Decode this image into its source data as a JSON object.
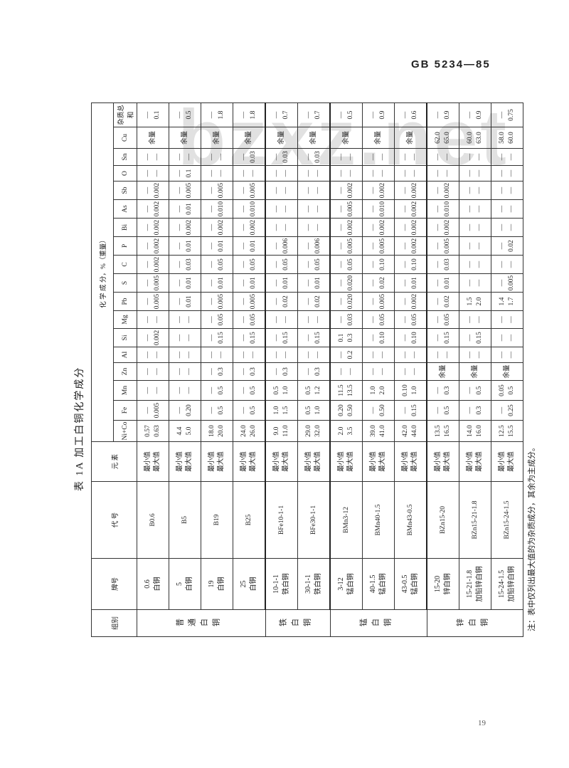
{
  "header": {
    "standard": "GB 5234—85"
  },
  "page_number": "19",
  "watermark": "bzxz.net",
  "table": {
    "title": "表 1A  加工白铜化学成分",
    "headers": {
      "group": "组别",
      "brand": "牌号",
      "code": "代 号",
      "element": "元 素",
      "composition": "化 学 成 分，%（重量）"
    },
    "elements": [
      "Ni+Co",
      "Fe",
      "Mn",
      "Zn",
      "Al",
      "Si",
      "Mg",
      "Pb",
      "S",
      "C",
      "P",
      "Bi",
      "As",
      "Sb",
      "O",
      "Sn",
      "Cu",
      "杂质总和"
    ],
    "minmax": [
      "最小值",
      "最大值"
    ],
    "groups": [
      {
        "name": "普通白铜",
        "rows": 4
      },
      {
        "name": "铁白铜",
        "rows": 2
      },
      {
        "name": "锰白铜",
        "rows": 3
      },
      {
        "name": "锌白铜",
        "rows": 3
      }
    ],
    "rows": [
      {
        "brand": [
          "0.6",
          "白铜"
        ],
        "code": "B0.6",
        "values": [
          [
            "0.57",
            "0.63"
          ],
          [
            "—",
            "0.005"
          ],
          [
            "—",
            "—"
          ],
          [
            "—",
            "—"
          ],
          [
            "—",
            "—"
          ],
          [
            "—",
            "0.002"
          ],
          [
            "—",
            "—"
          ],
          [
            "—",
            "0.005"
          ],
          [
            "—",
            "0.005"
          ],
          [
            "—",
            "0.002"
          ],
          [
            "—",
            "0.002"
          ],
          [
            "—",
            "0.002"
          ],
          [
            "—",
            "0.002"
          ],
          [
            "—",
            "0.002"
          ],
          [
            "—",
            "—"
          ],
          [
            "—",
            "—"
          ],
          [
            "余量"
          ],
          [
            "—",
            "0.1"
          ]
        ]
      },
      {
        "brand": [
          "5",
          "白铜"
        ],
        "code": "B5",
        "values": [
          [
            "4.4",
            "5.0"
          ],
          [
            "—",
            "0.20"
          ],
          [
            "—",
            "—"
          ],
          [
            "—",
            "—"
          ],
          [
            "—",
            "—"
          ],
          [
            "—",
            "—"
          ],
          [
            "—",
            "—"
          ],
          [
            "—",
            "0.01"
          ],
          [
            "—",
            "0.01"
          ],
          [
            "—",
            "0.03"
          ],
          [
            "—",
            "0.01"
          ],
          [
            "—",
            "0.002"
          ],
          [
            "—",
            "0.01"
          ],
          [
            "—",
            "0.005"
          ],
          [
            "—",
            "0.1"
          ],
          [
            "—",
            "—"
          ],
          [
            "余量"
          ],
          [
            "—",
            "0.5"
          ]
        ]
      },
      {
        "brand": [
          "19",
          "白铜"
        ],
        "code": "B19",
        "values": [
          [
            "18.0",
            "20.0"
          ],
          [
            "—",
            "0.5"
          ],
          [
            "—",
            "0.5"
          ],
          [
            "—",
            "0.3"
          ],
          [
            "—",
            "—"
          ],
          [
            "—",
            "0.15"
          ],
          [
            "—",
            "0.05"
          ],
          [
            "—",
            "0.005"
          ],
          [
            "—",
            "0.01"
          ],
          [
            "—",
            "0.05"
          ],
          [
            "—",
            "0.01"
          ],
          [
            "—",
            "0.002"
          ],
          [
            "—",
            "0.010"
          ],
          [
            "—",
            "0.005"
          ],
          [
            "—",
            "—"
          ],
          [
            "—",
            "—"
          ],
          [
            "余量"
          ],
          [
            "—",
            "1.8"
          ]
        ]
      },
      {
        "brand": [
          "25",
          "白铜"
        ],
        "code": "B25",
        "values": [
          [
            "24.0",
            "26.0"
          ],
          [
            "—",
            "0.5"
          ],
          [
            "—",
            "0.5"
          ],
          [
            "—",
            "0.3"
          ],
          [
            "—",
            "—"
          ],
          [
            "—",
            "0.15"
          ],
          [
            "—",
            "0.05"
          ],
          [
            "—",
            "0.005"
          ],
          [
            "—",
            "0.01"
          ],
          [
            "—",
            "0.05"
          ],
          [
            "—",
            "0.01"
          ],
          [
            "—",
            "0.002"
          ],
          [
            "—",
            "0.010"
          ],
          [
            "—",
            "0.005"
          ],
          [
            "—",
            "—"
          ],
          [
            "—",
            "0.03"
          ],
          [
            "余量"
          ],
          [
            "—",
            "1.8"
          ]
        ]
      },
      {
        "brand": [
          "10-1-1",
          "铁白铜"
        ],
        "code": "BFe10-1-1",
        "values": [
          [
            "9.0",
            "11.0"
          ],
          [
            "1.0",
            "1.5"
          ],
          [
            "0.5",
            "1.0"
          ],
          [
            "—",
            "0.3"
          ],
          [
            "—",
            "—"
          ],
          [
            "—",
            "0.15"
          ],
          [
            "—",
            "—"
          ],
          [
            "—",
            "0.02"
          ],
          [
            "—",
            "0.01"
          ],
          [
            "—",
            "0.05"
          ],
          [
            "—",
            "0.006"
          ],
          [
            "—",
            "—"
          ],
          [
            "—",
            "—"
          ],
          [
            "—",
            "—"
          ],
          [
            "—",
            "—"
          ],
          [
            "—",
            "0.03"
          ],
          [
            "余量"
          ],
          [
            "—",
            "0.7"
          ]
        ]
      },
      {
        "brand": [
          "30-1-1",
          "铁白铜"
        ],
        "code": "BFe30-1-1",
        "values": [
          [
            "29.0",
            "32.0"
          ],
          [
            "0.5",
            "1.0"
          ],
          [
            "0.5",
            "1.2"
          ],
          [
            "—",
            "0.3"
          ],
          [
            "—",
            "—"
          ],
          [
            "—",
            "0.15"
          ],
          [
            "—",
            "—"
          ],
          [
            "—",
            "0.02"
          ],
          [
            "—",
            "0.01"
          ],
          [
            "—",
            "0.05"
          ],
          [
            "—",
            "0.006"
          ],
          [
            "—",
            "—"
          ],
          [
            "—",
            "—"
          ],
          [
            "—",
            "—"
          ],
          [
            "—",
            "—"
          ],
          [
            "—",
            "0.03"
          ],
          [
            "余量"
          ],
          [
            "—",
            "0.7"
          ]
        ]
      },
      {
        "brand": [
          "3-12",
          "锰白铜"
        ],
        "code": "BMn3-12",
        "values": [
          [
            "2.0",
            "3.5"
          ],
          [
            "0.20",
            "0.50"
          ],
          [
            "11.5",
            "13.5"
          ],
          [
            "—",
            "—"
          ],
          [
            "—",
            "0.2"
          ],
          [
            "0.1",
            "0.3"
          ],
          [
            "—",
            "0.03"
          ],
          [
            "—",
            "0.020"
          ],
          [
            "—",
            "0.020"
          ],
          [
            "—",
            "0.05"
          ],
          [
            "—",
            "0.005"
          ],
          [
            "—",
            "0.002"
          ],
          [
            "—",
            "0.005"
          ],
          [
            "—",
            "0.002"
          ],
          [
            "—",
            "—"
          ],
          [
            "—",
            "—"
          ],
          [
            "余量"
          ],
          [
            "—",
            "0.5"
          ]
        ]
      },
      {
        "brand": [
          "40-1.5",
          "锰白铜"
        ],
        "code": "BMn40-1.5",
        "values": [
          [
            "39.0",
            "41.0"
          ],
          [
            "—",
            "0.50"
          ],
          [
            "1.0",
            "2.0"
          ],
          [
            "—",
            "—"
          ],
          [
            "—",
            "—"
          ],
          [
            "—",
            "0.10"
          ],
          [
            "—",
            "0.05"
          ],
          [
            "—",
            "0.005"
          ],
          [
            "—",
            "0.02"
          ],
          [
            "—",
            "0.10"
          ],
          [
            "—",
            "0.005"
          ],
          [
            "—",
            "0.002"
          ],
          [
            "—",
            "0.010"
          ],
          [
            "—",
            "0.002"
          ],
          [
            "—",
            "—"
          ],
          [
            "—",
            "—"
          ],
          [
            "余量"
          ],
          [
            "—",
            "0.9"
          ]
        ]
      },
      {
        "brand": [
          "43-0.5",
          "锰白铜"
        ],
        "code": "BMn43-0.5",
        "values": [
          [
            "42.0",
            "44.0"
          ],
          [
            "—",
            "0.15"
          ],
          [
            "0.10",
            "1.0"
          ],
          [
            "—",
            "—"
          ],
          [
            "—",
            "—"
          ],
          [
            "—",
            "0.10"
          ],
          [
            "—",
            "0.05"
          ],
          [
            "—",
            "0.002"
          ],
          [
            "—",
            "0.01"
          ],
          [
            "—",
            "0.10"
          ],
          [
            "—",
            "0.002"
          ],
          [
            "—",
            "0.002"
          ],
          [
            "—",
            "0.002"
          ],
          [
            "—",
            "0.002"
          ],
          [
            "—",
            "—"
          ],
          [
            "—",
            "—"
          ],
          [
            "余量"
          ],
          [
            "—",
            "0.6"
          ]
        ]
      },
      {
        "brand": [
          "15-20",
          "锌白铜"
        ],
        "code": "BZn15-20",
        "values": [
          [
            "13.5",
            "16.5"
          ],
          [
            "—",
            "0.5"
          ],
          [
            "—",
            "0.3"
          ],
          [
            "余量"
          ],
          [
            "—",
            "—"
          ],
          [
            "—",
            "0.15"
          ],
          [
            "—",
            "0.05"
          ],
          [
            "—",
            "0.02"
          ],
          [
            "—",
            "0.01"
          ],
          [
            "—",
            "0.03"
          ],
          [
            "—",
            "0.005"
          ],
          [
            "—",
            "0.002"
          ],
          [
            "—",
            "0.010"
          ],
          [
            "—",
            "0.002"
          ],
          [
            "—",
            "—"
          ],
          [
            "—",
            "—"
          ],
          [
            "62.0",
            "65.0"
          ],
          [
            "—",
            "0.9"
          ]
        ]
      },
      {
        "brand": [
          "15-21-1.8",
          "加铅锌白铜"
        ],
        "code": "BZn15-21-1.8",
        "values": [
          [
            "14.0",
            "16.0"
          ],
          [
            "—",
            "0.3"
          ],
          [
            "—",
            "0.5"
          ],
          [
            "余量"
          ],
          [
            "—",
            "—"
          ],
          [
            "—",
            "0.15"
          ],
          [
            "—",
            "—"
          ],
          [
            "1.5",
            "2.0"
          ],
          [
            "—",
            "—"
          ],
          [
            "—",
            "—"
          ],
          [
            "—",
            "—"
          ],
          [
            "—",
            "—"
          ],
          [
            "—",
            "—"
          ],
          [
            "—",
            "—"
          ],
          [
            "—",
            "—"
          ],
          [
            "—",
            "—"
          ],
          [
            "60.0",
            "63.0"
          ],
          [
            "—",
            "0.9"
          ]
        ]
      },
      {
        "brand": [
          "15-24-1.5",
          "加铅锌白铜"
        ],
        "code": "BZn15-24-1.5",
        "values": [
          [
            "12.5",
            "15.5"
          ],
          [
            "—",
            "0.25"
          ],
          [
            "0.05",
            "0.5"
          ],
          [
            "余量"
          ],
          [
            "—",
            "—"
          ],
          [
            "—",
            "—"
          ],
          [
            "—",
            "—"
          ],
          [
            "1.4",
            "1.7"
          ],
          [
            "—",
            "0.005"
          ],
          [
            "—",
            "—"
          ],
          [
            "—",
            "0.02"
          ],
          [
            "—",
            "—"
          ],
          [
            "—",
            "—"
          ],
          [
            "—",
            "—"
          ],
          [
            "—",
            "—"
          ],
          [
            "—",
            "—"
          ],
          [
            "58.0",
            "60.0"
          ],
          [
            "—",
            "0.75"
          ]
        ]
      }
    ],
    "note": "注：表中仅列出最大值的为杂质成分，其余为主成分。"
  }
}
